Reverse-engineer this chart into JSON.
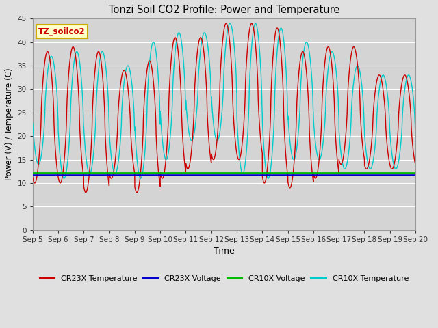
{
  "title": "Tonzi Soil CO2 Profile: Power and Temperature",
  "xlabel": "Time",
  "ylabel": "Power (V) / Temperature (C)",
  "ylim": [
    0,
    45
  ],
  "yticks": [
    0,
    5,
    10,
    15,
    20,
    25,
    30,
    35,
    40,
    45
  ],
  "xtick_labels": [
    "Sep 5",
    "Sep 6",
    "Sep 7",
    "Sep 8",
    "Sep 9",
    "Sep 10",
    "Sep 11",
    "Sep 12",
    "Sep 13",
    "Sep 14",
    "Sep 15",
    "Sep 16",
    "Sep 17",
    "Sep 18",
    "Sep 19",
    "Sep 20"
  ],
  "cr23x_temp_color": "#cc0000",
  "cr23x_volt_color": "#0000cc",
  "cr10x_volt_color": "#00bb00",
  "cr10x_temp_color": "#00cccc",
  "fig_bg_color": "#e0e0e0",
  "plot_bg_color": "#d4d4d4",
  "voltage_cr23x": 11.7,
  "voltage_cr10x": 12.1,
  "legend_label_cr23x_temp": "CR23X Temperature",
  "legend_label_cr23x_volt": "CR23X Voltage",
  "legend_label_cr10x_volt": "CR10X Voltage",
  "legend_label_cr10x_temp": "CR10X Temperature",
  "inset_label": "TZ_soilco2",
  "inset_label_color": "#cc0000",
  "inset_box_facecolor": "#ffffcc",
  "inset_box_edgecolor": "#ccaa00",
  "cr23x_peaks": [
    38,
    39,
    38,
    34,
    36,
    41,
    41,
    44,
    44,
    43,
    38,
    39,
    39,
    33
  ],
  "cr23x_troughs": [
    10,
    10,
    8,
    11,
    8,
    11,
    13,
    15,
    15,
    10,
    9,
    11,
    14,
    13
  ],
  "cr10x_peaks": [
    37,
    38,
    38,
    35,
    40,
    42,
    42,
    44,
    44,
    43,
    40,
    38,
    35,
    33
  ],
  "cr10x_troughs": [
    14,
    11,
    12,
    12,
    11,
    15,
    19,
    19,
    12,
    11,
    15,
    15,
    13,
    13
  ],
  "cr10x_phase_lead": 0.15
}
